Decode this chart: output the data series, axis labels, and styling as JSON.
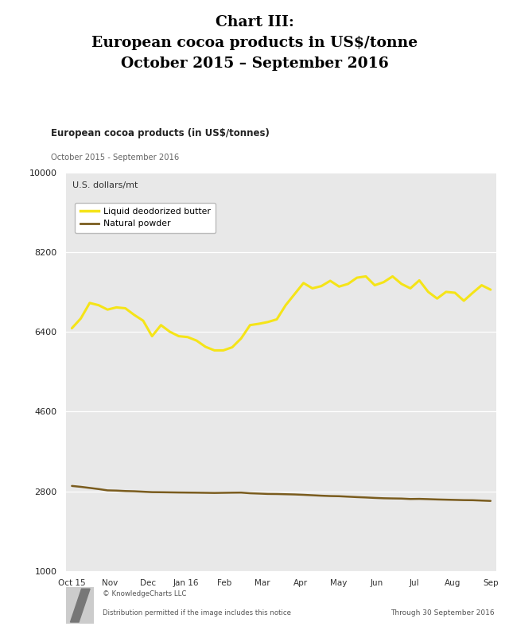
{
  "title_line1": "Chart III:",
  "title_line2": "European cocoa products in US$/tonne",
  "title_line3": "October 2015 – September 2016",
  "chart_title": "European cocoa products (in US$/tonnes)",
  "chart_subtitle": "October 2015 - September 2016",
  "y_label": "U.S. dollars/mt",
  "yticks": [
    1000,
    2800,
    4600,
    6400,
    8200,
    10000
  ],
  "ylim": [
    1000,
    10000
  ],
  "x_labels": [
    "Oct 15",
    "Nov",
    "Dec",
    "Jan 16",
    "Feb",
    "Mar",
    "Apr",
    "May",
    "Jun",
    "Jul",
    "Aug",
    "Sep"
  ],
  "background_color": "#e8e8e8",
  "white_bg": "#ffffff",
  "legend_label_butter": "Liquid deodorized butter",
  "legend_label_powder": "Natural powder",
  "butter_color": "#f5e418",
  "powder_color": "#7a5c1e",
  "footer_left1": "© KnowledgeCharts LLC",
  "footer_left2": "Distribution permitted if the image includes this notice",
  "footer_right": "Through 30 September 2016",
  "butter_values": [
    6480,
    6700,
    7050,
    7000,
    6900,
    6950,
    6930,
    6780,
    6650,
    6300,
    6550,
    6400,
    6300,
    6280,
    6200,
    6060,
    5980,
    5980,
    6050,
    6250,
    6550,
    6580,
    6620,
    6680,
    7000,
    7250,
    7500,
    7380,
    7430,
    7550,
    7420,
    7480,
    7620,
    7650,
    7450,
    7520,
    7650,
    7480,
    7380,
    7560,
    7300,
    7150,
    7300,
    7280,
    7100,
    7280,
    7450,
    7350
  ],
  "powder_values": [
    2920,
    2900,
    2875,
    2850,
    2820,
    2815,
    2805,
    2800,
    2790,
    2780,
    2778,
    2775,
    2772,
    2770,
    2768,
    2765,
    2762,
    2765,
    2768,
    2770,
    2755,
    2748,
    2740,
    2738,
    2733,
    2728,
    2720,
    2710,
    2700,
    2692,
    2688,
    2678,
    2668,
    2660,
    2650,
    2642,
    2638,
    2635,
    2625,
    2628,
    2622,
    2615,
    2610,
    2605,
    2600,
    2598,
    2590,
    2582
  ]
}
